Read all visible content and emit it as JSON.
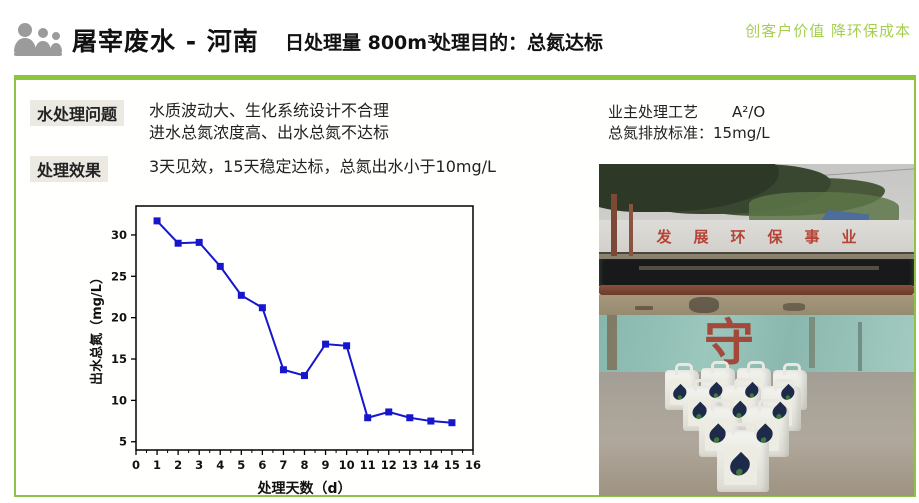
{
  "header": {
    "title": "屠宰废水 - 河南",
    "stat_volume": "日处理量 800m³",
    "stat_purpose": "处理目的：总氮达标",
    "slogan": "创客户价值 降环保成本"
  },
  "colors": {
    "accent_green": "#8cc63f",
    "slogan_green": "#a6cf52",
    "chart_blue": "#1616cd",
    "label_highlight": "#ebe9e2"
  },
  "info": {
    "problem_label": "水处理问题",
    "problem_line1": "水质波动大、生化系统设计不合理",
    "problem_line2": "进水总氮浓度高、出水总氮不达标",
    "effect_label": "处理效果",
    "effect_text": "3天见效，15天稳定达标，总氮出水小于10mg/L",
    "process_line": "业主处理工艺",
    "process_value": "A²/O",
    "standard_line": "总氮排放标准：15mg/L"
  },
  "photo": {
    "banner_text": "发展环保事业",
    "wall_char": "守"
  },
  "chart_data": {
    "type": "line",
    "title": "",
    "xlabel": "处理天数（d）",
    "ylabel": "出水总氮（mg/L）",
    "x": [
      1,
      2,
      3,
      4,
      5,
      6,
      7,
      8,
      9,
      10,
      11,
      12,
      13,
      14,
      15
    ],
    "values": [
      31.7,
      29.0,
      29.1,
      26.2,
      22.7,
      21.2,
      13.7,
      13.0,
      16.8,
      16.6,
      7.9,
      8.6,
      7.9,
      7.5,
      7.3
    ],
    "xlim": [
      0,
      16
    ],
    "ylim": [
      4,
      33.5
    ],
    "xticks": [
      0,
      1,
      2,
      3,
      4,
      5,
      6,
      7,
      8,
      9,
      10,
      11,
      12,
      13,
      14,
      15,
      16
    ],
    "yticks": [
      5,
      10,
      15,
      20,
      25,
      30
    ],
    "line_color": "#1616cd",
    "marker": "square",
    "grid": false,
    "legend": "none"
  }
}
